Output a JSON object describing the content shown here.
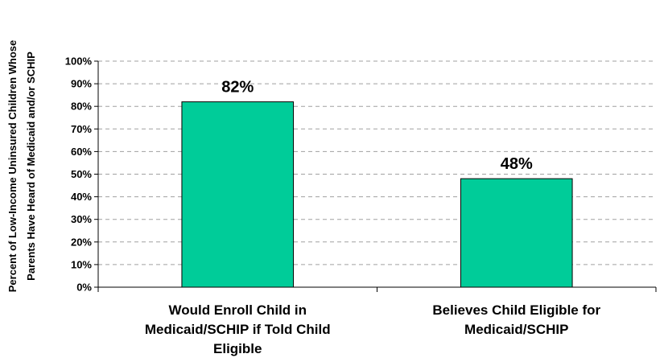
{
  "chart_data": {
    "type": "bar",
    "title": "",
    "xlabel": "",
    "ylabel_lines": [
      "Percent of Low-Income Uninsured Children Whose",
      "Parents Have Heard of Medicaid and/or SCHIP"
    ],
    "categories": [
      [
        "Would Enroll Child in",
        "Medicaid/SCHIP if Told Child",
        "Eligible"
      ],
      [
        "Believes Child Eligible for",
        "Medicaid/SCHIP"
      ]
    ],
    "values": [
      82,
      48
    ],
    "data_labels": [
      "82%",
      "48%"
    ],
    "ylim": [
      0,
      100
    ],
    "yticks": [
      0,
      10,
      20,
      30,
      40,
      50,
      60,
      70,
      80,
      90,
      100
    ],
    "ytick_labels": [
      "0%",
      "10%",
      "20%",
      "30%",
      "40%",
      "50%",
      "60%",
      "70%",
      "80%",
      "90%",
      "100%"
    ],
    "grid": true,
    "bar_color": "#00CC99",
    "bar_edge_color": "#000000"
  }
}
